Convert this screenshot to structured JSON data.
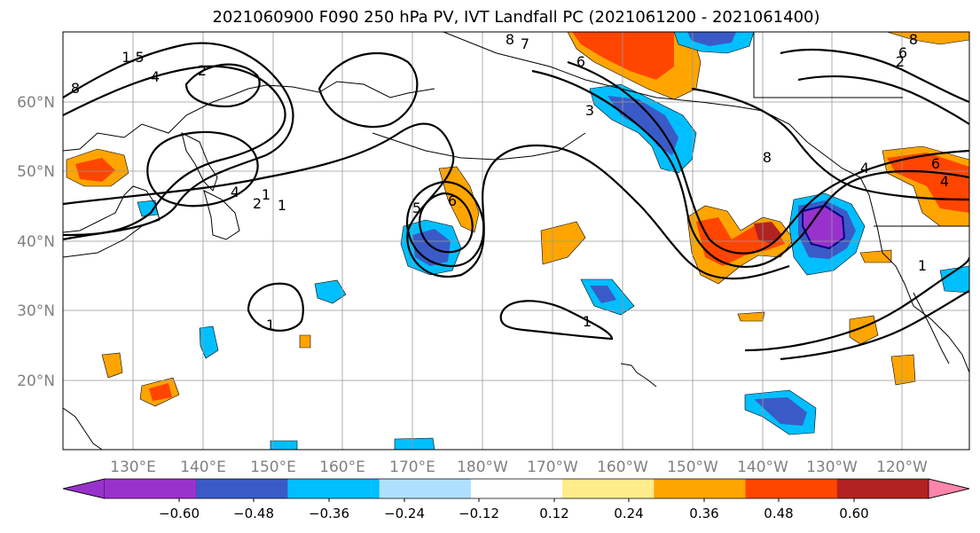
{
  "title": "2021060900 F090 250 hPa PV, IVT Landfall PC (2021061200 - 2021061400)",
  "map": {
    "lat_labels": [
      "60°N",
      "50°N",
      "40°N",
      "30°N",
      "20°N"
    ],
    "lon_labels": [
      "130°E",
      "140°E",
      "150°E",
      "160°E",
      "170°E",
      "180°W",
      "170°W",
      "160°W",
      "150°W",
      "140°W",
      "130°W",
      "120°W"
    ],
    "contour_labels": [
      "8",
      "1.5",
      "4",
      "2",
      "1",
      "4",
      "2",
      "1",
      "5",
      "6",
      "8",
      "7",
      "6",
      "3",
      "8",
      "6",
      "4",
      "1",
      "1",
      "1",
      "2",
      "8",
      "6",
      "4"
    ],
    "shading_colors": {
      "neg_060": "#9932CC",
      "neg_048": "#00008B",
      "neg_036": "#3A5BC7",
      "neg_024": "#00BFFF",
      "neg_012": "#B0E0FF",
      "neutral": "#FFFFFF",
      "pos_012": "#FFEC8B",
      "pos_024": "#FFA500",
      "pos_036": "#FF4500",
      "pos_048": "#B22222",
      "pos_060": "#FF85AA"
    }
  },
  "colorbar": {
    "ticks": [
      "−0.60",
      "−0.48",
      "−0.36",
      "−0.24",
      "−0.12",
      "0.12",
      "0.24",
      "0.36",
      "0.48",
      "0.60"
    ],
    "colors": [
      "#9932CC",
      "#00008B",
      "#3A5BC7",
      "#00BFFF",
      "#B0E0FF",
      "#FFFFFF",
      "#FFEC8B",
      "#FFA500",
      "#FF4500",
      "#B22222",
      "#FF85AA"
    ]
  }
}
